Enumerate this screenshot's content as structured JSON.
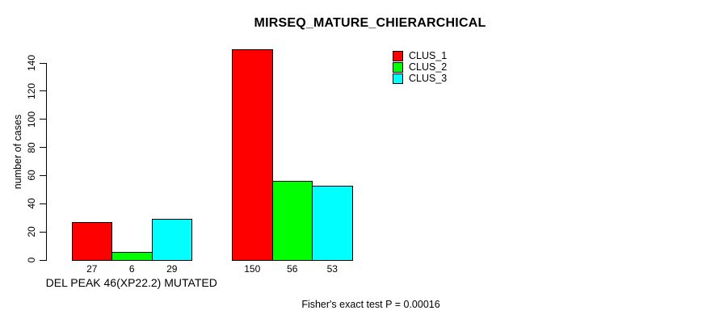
{
  "chart_data": {
    "type": "bar",
    "title": "MIRSEQ_MATURE_CHIERARCHICAL",
    "ylabel": "number of cases",
    "annotation": "Fisher's exact test P = 0.00016",
    "ylim": [
      0,
      150
    ],
    "yticks": [
      0,
      20,
      40,
      60,
      80,
      100,
      120,
      140
    ],
    "grid": false,
    "legend_position": "top-right",
    "bar_value_labels": true,
    "categories": [
      "DEL PEAK 46(XP22.2) MUTATED",
      ""
    ],
    "series": [
      {
        "name": "CLUS_1",
        "color": "#ff0000",
        "values": [
          27,
          150
        ]
      },
      {
        "name": "CLUS_2",
        "color": "#00ff00",
        "values": [
          6,
          56
        ]
      },
      {
        "name": "CLUS_3",
        "color": "#00ffff",
        "values": [
          29,
          53
        ]
      }
    ],
    "colors": {
      "bar_border": "#000000",
      "text": "#000000",
      "background": "#ffffff"
    }
  }
}
